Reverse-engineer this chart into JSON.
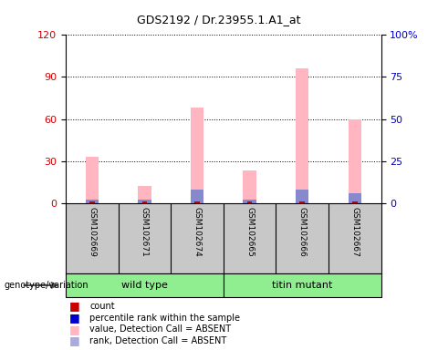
{
  "title": "GDS2192 / Dr.23955.1.A1_at",
  "samples": [
    "GSM102669",
    "GSM102671",
    "GSM102674",
    "GSM102665",
    "GSM102666",
    "GSM102667"
  ],
  "groups": [
    {
      "name": "wild type",
      "indices": [
        0,
        1,
        2
      ],
      "color": "#90EE90"
    },
    {
      "name": "titin mutant",
      "indices": [
        3,
        4,
        5
      ],
      "color": "#90EE90"
    }
  ],
  "count_values": [
    1,
    1,
    1,
    1,
    1,
    1
  ],
  "rank_values": [
    2,
    2,
    8,
    2,
    8,
    6
  ],
  "absent_value_values": [
    33,
    12,
    68,
    23,
    96,
    60
  ],
  "absent_rank_values": [
    33,
    12,
    68,
    23,
    96,
    60
  ],
  "left_ylim": [
    0,
    120
  ],
  "left_yticks": [
    0,
    30,
    60,
    90,
    120
  ],
  "right_ylim": [
    0,
    100
  ],
  "right_yticks": [
    0,
    25,
    50,
    75,
    100
  ],
  "right_yticklabels": [
    "0",
    "25",
    "50",
    "75",
    "100%"
  ],
  "bar_width": 0.25,
  "count_color": "#CC0000",
  "rank_color": "#8888CC",
  "absent_value_color": "#FFB6C1",
  "absent_rank_color": "#FFB6C1",
  "group_label_text": "genotype/variation",
  "legend_items": [
    {
      "label": "count",
      "color": "#CC0000"
    },
    {
      "label": "percentile rank within the sample",
      "color": "#0000CC"
    },
    {
      "label": "value, Detection Call = ABSENT",
      "color": "#FFB6C1"
    },
    {
      "label": "rank, Detection Call = ABSENT",
      "color": "#AAAADD"
    }
  ],
  "background_color": "#FFFFFF",
  "plot_bg_color": "#FFFFFF",
  "grid_color": "#000000",
  "axis_label_color_left": "#CC0000",
  "axis_label_color_right": "#0000CC",
  "label_bg_color": "#C8C8C8",
  "separator_color": "#000000"
}
